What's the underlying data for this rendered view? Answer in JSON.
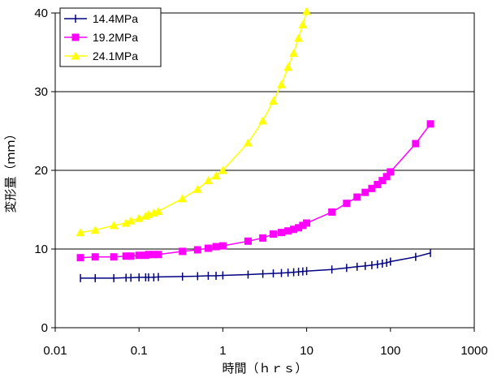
{
  "chart_data": {
    "type": "line",
    "xscale": "log",
    "xlim": [
      0.01,
      1000
    ],
    "ylim": [
      0,
      40
    ],
    "xticks": [
      "0.01",
      "0.1",
      "1",
      "10",
      "100",
      "1000"
    ],
    "yticks": [
      "0",
      "10",
      "20",
      "30",
      "40"
    ],
    "xlabel": "時間（ｈｒｓ）",
    "ylabel": "変形量（ｍｍ）",
    "grid": "horizontal",
    "legend_position": "top-left",
    "series": [
      {
        "name": "14.4MPa",
        "color": "#000080",
        "marker": "vertical-tick",
        "x": [
          0.02,
          0.03,
          0.05,
          0.07,
          0.08,
          0.1,
          0.12,
          0.13,
          0.15,
          0.17,
          0.33,
          0.5,
          0.67,
          0.83,
          1,
          2,
          3,
          4,
          5,
          6,
          7,
          8,
          9,
          10,
          20,
          30,
          40,
          50,
          60,
          70,
          80,
          90,
          100,
          200,
          300
        ],
        "y": [
          6.3,
          6.3,
          6.3,
          6.35,
          6.35,
          6.4,
          6.4,
          6.4,
          6.4,
          6.45,
          6.5,
          6.55,
          6.6,
          6.6,
          6.65,
          6.75,
          6.85,
          6.9,
          6.95,
          7.0,
          7.05,
          7.1,
          7.15,
          7.2,
          7.4,
          7.6,
          7.75,
          7.85,
          7.95,
          8.05,
          8.15,
          8.25,
          8.4,
          9.0,
          9.5
        ]
      },
      {
        "name": "19.2MPa",
        "color": "#FF00FF",
        "marker": "square",
        "x": [
          0.02,
          0.03,
          0.05,
          0.07,
          0.08,
          0.1,
          0.12,
          0.13,
          0.15,
          0.17,
          0.33,
          0.5,
          0.67,
          0.83,
          1,
          2,
          3,
          4,
          5,
          6,
          7,
          8,
          9,
          10,
          20,
          30,
          40,
          50,
          60,
          70,
          80,
          90,
          100,
          200,
          300
        ],
        "y": [
          8.9,
          9.0,
          9.0,
          9.1,
          9.1,
          9.2,
          9.2,
          9.3,
          9.3,
          9.3,
          9.7,
          9.9,
          10.1,
          10.3,
          10.4,
          11.0,
          11.4,
          11.9,
          12.1,
          12.3,
          12.5,
          12.7,
          13.0,
          13.3,
          14.7,
          15.8,
          16.6,
          17.2,
          17.7,
          18.2,
          18.7,
          19.2,
          19.8,
          23.4,
          25.9
        ]
      },
      {
        "name": "24.1MPa",
        "color": "#FFFF00",
        "marker": "triangle",
        "x": [
          0.02,
          0.03,
          0.05,
          0.07,
          0.08,
          0.1,
          0.12,
          0.13,
          0.15,
          0.17,
          0.33,
          0.5,
          0.67,
          0.83,
          1,
          2,
          3,
          4,
          5,
          6,
          7,
          8,
          9,
          10
        ],
        "y": [
          12.1,
          12.4,
          13.0,
          13.3,
          13.6,
          13.9,
          14.2,
          14.4,
          14.6,
          14.8,
          16.4,
          17.6,
          18.7,
          19.3,
          20.0,
          23.5,
          26.3,
          28.8,
          30.9,
          33.1,
          34.9,
          36.8,
          38.5,
          40.2
        ]
      }
    ]
  }
}
